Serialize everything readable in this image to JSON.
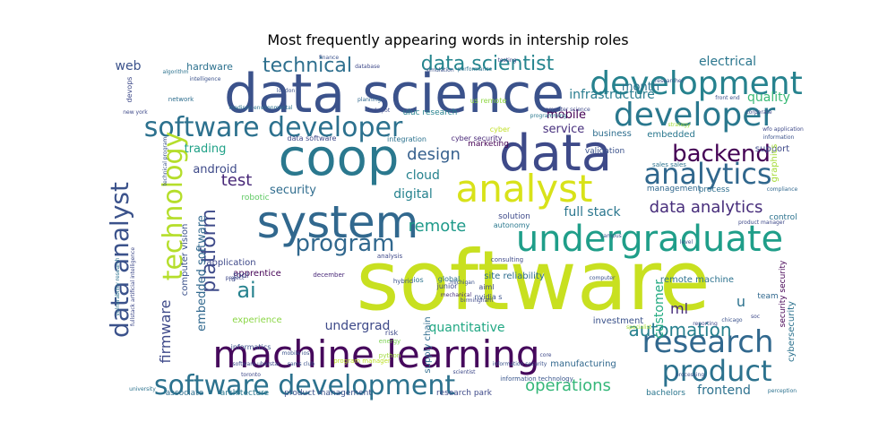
{
  "chart_data": {
    "type": "wordcloud",
    "title": "Most frequently appearing words in intership roles",
    "words": [
      {
        "text": "software",
        "color": "#c8e020"
      },
      {
        "text": "data science",
        "color": "#3b528b"
      },
      {
        "text": "machine learning",
        "color": "#46085c"
      },
      {
        "text": "coop",
        "color": "#2a788e"
      },
      {
        "text": "data",
        "color": "#3e4a89"
      },
      {
        "text": "system",
        "color": "#31688e"
      },
      {
        "text": "analyst",
        "color": "#d8e219"
      },
      {
        "text": "software developer",
        "color": "#2c718e"
      },
      {
        "text": "undergraduate",
        "color": "#1f9e89"
      },
      {
        "text": "developer",
        "color": "#2a788e"
      },
      {
        "text": "development",
        "color": "#26828e"
      },
      {
        "text": "software development",
        "color": "#2c728e"
      },
      {
        "text": "research",
        "color": "#31688e"
      },
      {
        "text": "product",
        "color": "#2c728e"
      },
      {
        "text": "analytics",
        "color": "#30678d"
      },
      {
        "text": "data analyst",
        "color": "#3b528b"
      },
      {
        "text": "technology",
        "color": "#b5de2b"
      },
      {
        "text": "program",
        "color": "#31688e"
      },
      {
        "text": "backend",
        "color": "#440154"
      },
      {
        "text": "platform",
        "color": "#3e4a89"
      },
      {
        "text": "data scientist",
        "color": "#25858e"
      },
      {
        "text": "technical",
        "color": "#2e6f8e"
      },
      {
        "text": "data analytics",
        "color": "#472d7b"
      },
      {
        "text": "automation",
        "color": "#27808e"
      },
      {
        "text": "operations",
        "color": "#35b779"
      },
      {
        "text": "design",
        "color": "#355f8d"
      },
      {
        "text": "ai",
        "color": "#26828e"
      },
      {
        "text": "remote",
        "color": "#1f9a8a"
      },
      {
        "text": "test",
        "color": "#482878"
      },
      {
        "text": "firmware",
        "color": "#3e4989"
      },
      {
        "text": "infrastructure",
        "color": "#287c8e"
      },
      {
        "text": "month",
        "color": "#2c728e"
      },
      {
        "text": "electrical",
        "color": "#2a768e"
      },
      {
        "text": "quality",
        "color": "#3aba76"
      },
      {
        "text": "web",
        "color": "#3b528b"
      },
      {
        "text": "hardware",
        "color": "#2c718e"
      },
      {
        "text": "trading",
        "color": "#1fa187"
      },
      {
        "text": "android",
        "color": "#3e4a89"
      },
      {
        "text": "mobile",
        "color": "#440154"
      },
      {
        "text": "service",
        "color": "#472f7d"
      },
      {
        "text": "cloud",
        "color": "#26828e"
      },
      {
        "text": "security",
        "color": "#2f6c8e"
      },
      {
        "text": "digital",
        "color": "#26828e"
      },
      {
        "text": "embedded software",
        "color": "#31688e"
      },
      {
        "text": "full stack",
        "color": "#2a768e"
      },
      {
        "text": "ml",
        "color": "#472d7b"
      },
      {
        "text": "frontend",
        "color": "#2c718e"
      },
      {
        "text": "quantitative",
        "color": "#22a884"
      },
      {
        "text": "undergrad",
        "color": "#3e4a89"
      },
      {
        "text": "customer",
        "color": "#25ab82"
      },
      {
        "text": "u",
        "color": "#2c728e"
      },
      {
        "text": "support",
        "color": "#3e4989"
      },
      {
        "text": "graphics",
        "color": "#a5db36"
      },
      {
        "text": "embedded",
        "color": "#2a778e"
      },
      {
        "text": "business",
        "color": "#2e6e8e"
      },
      {
        "text": "computer vision",
        "color": "#3b518b"
      },
      {
        "text": "application",
        "color": "#3e4989"
      },
      {
        "text": "apprentice",
        "color": "#440154"
      },
      {
        "text": "experience",
        "color": "#8bd646"
      },
      {
        "text": "site reliability",
        "color": "#2e6e8e"
      },
      {
        "text": "remote machine",
        "color": "#2c728e"
      },
      {
        "text": "investment",
        "color": "#3b528b"
      },
      {
        "text": "supply chain",
        "color": "#2f6c8e"
      },
      {
        "text": "manufacturing",
        "color": "#31688e"
      },
      {
        "text": "associate",
        "color": "#2e6e8e"
      },
      {
        "text": "architecture",
        "color": "#2a788e"
      },
      {
        "text": "product management",
        "color": "#3b528b"
      },
      {
        "text": "research park",
        "color": "#3e4a89"
      },
      {
        "text": "bachelors",
        "color": "#2a768e"
      },
      {
        "text": "information technology",
        "color": "#39568c"
      },
      {
        "text": "cybersecurity",
        "color": "#2c728e"
      },
      {
        "text": "security security",
        "color": "#440154"
      },
      {
        "text": "team",
        "color": "#31688e"
      },
      {
        "text": "process",
        "color": "#2e6e8e"
      },
      {
        "text": "solution",
        "color": "#3e4a89"
      },
      {
        "text": "autonomy",
        "color": "#2a788e"
      },
      {
        "text": "consulting",
        "color": "#3e4989"
      },
      {
        "text": "control",
        "color": "#2c728e"
      },
      {
        "text": "marketing",
        "color": "#440154"
      },
      {
        "text": "validation",
        "color": "#3b528b"
      },
      {
        "text": "management",
        "color": "#31688e"
      },
      {
        "text": "robotic",
        "color": "#5ec962"
      },
      {
        "text": "tool",
        "color": "#3e4a89"
      },
      {
        "text": "integration",
        "color": "#2c728e"
      },
      {
        "text": "data software",
        "color": "#3e4989"
      },
      {
        "text": "cyber security",
        "color": "#482878"
      },
      {
        "text": "cyber",
        "color": "#c0df25"
      },
      {
        "text": "uiuc research",
        "color": "#26828e"
      },
      {
        "text": "us remote",
        "color": "#8fd744"
      },
      {
        "text": "junior",
        "color": "#3e4989"
      },
      {
        "text": "global",
        "color": "#2c728e"
      },
      {
        "text": "hybrid",
        "color": "#3b528b"
      },
      {
        "text": "mechanical",
        "color": "#472d7b"
      },
      {
        "text": "ios",
        "color": "#2c728e"
      },
      {
        "text": "aiml",
        "color": "#3e4a89"
      },
      {
        "text": "nvidia s",
        "color": "#3b528b"
      },
      {
        "text": "analysis",
        "color": "#3e4989"
      },
      {
        "text": "informatics",
        "color": "#3b528b"
      },
      {
        "text": "risk",
        "color": "#3e4989"
      },
      {
        "text": "energy",
        "color": "#7ad151"
      },
      {
        "text": "python",
        "color": "#9fda3a"
      },
      {
        "text": "rd",
        "color": "#3e4989"
      },
      {
        "text": "december",
        "color": "#482878"
      },
      {
        "text": "network",
        "color": "#2e6e8e"
      },
      {
        "text": "devops",
        "color": "#3e4a89"
      },
      {
        "text": "london",
        "color": "#3b528b"
      },
      {
        "text": "madison environmental",
        "color": "#2c728e"
      },
      {
        "text": "new york",
        "color": "#3e4989"
      },
      {
        "text": "planning",
        "color": "#31688e"
      },
      {
        "text": "programming",
        "color": "#2a788e"
      },
      {
        "text": "computer science",
        "color": "#3e4989"
      },
      {
        "text": "strategy",
        "color": "#a0da39"
      },
      {
        "text": "information",
        "color": "#3b528b"
      },
      {
        "text": "compliance",
        "color": "#31688e"
      },
      {
        "text": "sales sales",
        "color": "#2c728e"
      },
      {
        "text": "product manager",
        "color": "#3e4989"
      },
      {
        "text": "chicago",
        "color": "#3b528b"
      },
      {
        "text": "soc",
        "color": "#3e4989"
      },
      {
        "text": "perception",
        "color": "#2c728e"
      },
      {
        "text": "processing",
        "color": "#3b528b"
      },
      {
        "text": "scientist",
        "color": "#3e4989"
      },
      {
        "text": "mobile ios",
        "color": "#3b528b"
      },
      {
        "text": "toronto",
        "color": "#3e4989"
      },
      {
        "text": "university",
        "color": "#2c728e"
      },
      {
        "text": "sams club",
        "color": "#3b528b"
      },
      {
        "text": "software uberstar",
        "color": "#3e4989"
      },
      {
        "text": "program manager",
        "color": "#bddf26"
      },
      {
        "text": "information security",
        "color": "#3b528b"
      },
      {
        "text": "reporting",
        "color": "#3e4989"
      },
      {
        "text": "level",
        "color": "#3b528b"
      },
      {
        "text": "wfo application",
        "color": "#3e4989"
      },
      {
        "text": "front end",
        "color": "#3b528b"
      },
      {
        "text": "hubspot",
        "color": "#3e4989"
      },
      {
        "text": "finance",
        "color": "#3b528b"
      },
      {
        "text": "database",
        "color": "#3e4989"
      },
      {
        "text": "algorithm",
        "color": "#2c728e"
      },
      {
        "text": "simulation",
        "color": "#3b528b"
      },
      {
        "text": "performance",
        "color": "#2c728e"
      },
      {
        "text": "testing",
        "color": "#3e4989"
      },
      {
        "text": "intelligence",
        "color": "#3b528b"
      },
      {
        "text": "birmingham",
        "color": "#3e4989"
      },
      {
        "text": "michigan",
        "color": "#3b528b"
      },
      {
        "text": "core",
        "color": "#3e4989"
      },
      {
        "text": "specialist",
        "color": "#a8db34"
      },
      {
        "text": "computer",
        "color": "#3b528b"
      },
      {
        "text": "project",
        "color": "#3e4989"
      },
      {
        "text": "campus",
        "color": "#3b528b"
      },
      {
        "text": "corporate",
        "color": "#3e4989"
      },
      {
        "text": "researcher",
        "color": "#3b528b"
      },
      {
        "text": "fullstack artificial intelligence",
        "color": "#3e4989"
      },
      {
        "text": "vulnerability research",
        "color": "#2c728e"
      },
      {
        "text": "technical program",
        "color": "#3b528b"
      }
    ]
  }
}
